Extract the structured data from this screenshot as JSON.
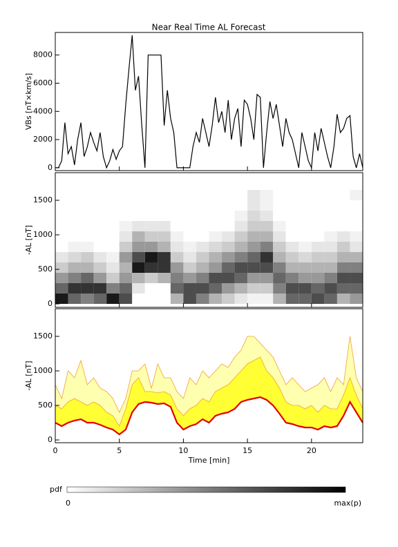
{
  "chart_data": [
    {
      "type": "line",
      "title": "Near Real Time AL Forecast",
      "ylabel": "VBs [nT×km/s]",
      "xlim": [
        0,
        24
      ],
      "xticks": [
        0,
        5,
        10,
        15,
        20
      ],
      "ylim": [
        -200,
        9600
      ],
      "yticks": [
        0,
        2000,
        4000,
        6000,
        8000
      ],
      "x": [
        0,
        0.25,
        0.5,
        0.75,
        1,
        1.25,
        1.5,
        1.75,
        2,
        2.25,
        2.5,
        2.75,
        3,
        3.25,
        3.5,
        3.75,
        4,
        4.25,
        4.5,
        4.75,
        5,
        5.25,
        5.5,
        5.75,
        6,
        6.25,
        6.5,
        6.75,
        7,
        7.25,
        7.5,
        7.75,
        8,
        8.25,
        8.5,
        8.75,
        9,
        9.25,
        9.5,
        9.75,
        10,
        10.25,
        10.5,
        10.75,
        11,
        11.25,
        11.5,
        11.75,
        12,
        12.25,
        12.5,
        12.75,
        13,
        13.25,
        13.5,
        13.75,
        14,
        14.25,
        14.5,
        14.75,
        15,
        15.25,
        15.5,
        15.75,
        16,
        16.25,
        16.5,
        16.75,
        17,
        17.25,
        17.5,
        17.75,
        18,
        18.25,
        18.5,
        18.75,
        19,
        19.25,
        19.5,
        19.75,
        20,
        20.25,
        20.5,
        20.75,
        21,
        21.25,
        21.5,
        21.75,
        22,
        22.25,
        22.5,
        22.75,
        23,
        23.25,
        23.5,
        23.75,
        24
      ],
      "series": [
        {
          "color": "#000000",
          "values": [
            0,
            0,
            500,
            3200,
            1000,
            1500,
            200,
            2000,
            3200,
            800,
            1500,
            2500,
            1800,
            1200,
            2500,
            800,
            0,
            500,
            1300,
            600,
            1200,
            1500,
            4500,
            7000,
            9400,
            5500,
            6500,
            3000,
            0,
            8000,
            8000,
            8000,
            8000,
            8000,
            3000,
            5500,
            3500,
            2500,
            0,
            0,
            0,
            0,
            0,
            1500,
            2500,
            1800,
            3500,
            2500,
            1500,
            3000,
            5000,
            3200,
            4000,
            2500,
            4800,
            2000,
            3500,
            4200,
            1500,
            4800,
            4500,
            3500,
            2000,
            5200,
            5000,
            0,
            2500,
            4700,
            3500,
            4500,
            3000,
            1500,
            3500,
            2500,
            2000,
            1000,
            0,
            2500,
            1500,
            500,
            0,
            2500,
            1200,
            2800,
            1800,
            800,
            0,
            1500,
            3800,
            2500,
            2800,
            3500,
            3700,
            800,
            0,
            1000,
            0
          ]
        }
      ]
    },
    {
      "type": "heatmap",
      "ylabel": "-AL [nT]",
      "xlim": [
        0,
        24
      ],
      "xticks": [
        0,
        5,
        10,
        15,
        20
      ],
      "ylim": [
        -50,
        1900
      ],
      "yticks": [
        0,
        500,
        1000,
        1500
      ],
      "xbins": [
        0,
        1,
        2,
        3,
        4,
        5,
        6,
        7,
        8,
        9,
        10,
        11,
        12,
        13,
        14,
        15,
        16,
        17,
        18,
        19,
        20,
        21,
        22,
        23,
        24
      ],
      "ybins": [
        0,
        150,
        300,
        450,
        600,
        750,
        900,
        1050,
        1200,
        1350,
        1500,
        1650,
        1800
      ],
      "z": [
        [
          0.9,
          0.6,
          0.4,
          0.2,
          0.1,
          0,
          0,
          0,
          0,
          0,
          0,
          0
        ],
        [
          0.6,
          0.8,
          0.5,
          0.3,
          0.15,
          0.05,
          0,
          0,
          0,
          0,
          0,
          0
        ],
        [
          0.5,
          0.8,
          0.6,
          0.3,
          0.2,
          0.05,
          0,
          0,
          0,
          0,
          0,
          0
        ],
        [
          0.6,
          0.8,
          0.4,
          0.2,
          0.1,
          0,
          0,
          0,
          0,
          0,
          0,
          0
        ],
        [
          0.9,
          0.5,
          0.2,
          0.1,
          0.05,
          0,
          0,
          0,
          0,
          0,
          0,
          0
        ],
        [
          0.7,
          0.6,
          0.4,
          0.3,
          0.4,
          0.2,
          0.1,
          0.05,
          0,
          0,
          0,
          0
        ],
        [
          0,
          0.1,
          0.3,
          0.9,
          0.7,
          0.4,
          0.3,
          0.1,
          0,
          0,
          0,
          0
        ],
        [
          0,
          0,
          0.2,
          0.8,
          0.9,
          0.4,
          0.2,
          0.1,
          0,
          0,
          0,
          0
        ],
        [
          0,
          0,
          0.3,
          0.8,
          0.8,
          0.3,
          0.2,
          0.1,
          0,
          0,
          0,
          0
        ],
        [
          0.3,
          0.6,
          0.5,
          0.4,
          0.2,
          0.1,
          0.05,
          0,
          0,
          0,
          0,
          0
        ],
        [
          0.7,
          0.7,
          0.4,
          0.2,
          0.1,
          0.05,
          0,
          0,
          0,
          0,
          0,
          0
        ],
        [
          0.5,
          0.7,
          0.5,
          0.3,
          0.2,
          0.1,
          0,
          0,
          0,
          0,
          0,
          0
        ],
        [
          0.3,
          0.6,
          0.7,
          0.4,
          0.3,
          0.15,
          0.05,
          0,
          0,
          0,
          0,
          0
        ],
        [
          0.2,
          0.4,
          0.7,
          0.6,
          0.4,
          0.2,
          0.1,
          0,
          0,
          0,
          0,
          0
        ],
        [
          0.1,
          0.3,
          0.6,
          0.7,
          0.5,
          0.3,
          0.2,
          0.1,
          0.05,
          0,
          0,
          0
        ],
        [
          0.05,
          0.2,
          0.4,
          0.7,
          0.6,
          0.4,
          0.3,
          0.2,
          0.15,
          0.1,
          0.1,
          0
        ],
        [
          0.05,
          0.2,
          0.4,
          0.7,
          0.8,
          0.5,
          0.3,
          0.2,
          0.1,
          0.05,
          0.05,
          0
        ],
        [
          0.3,
          0.5,
          0.6,
          0.5,
          0.3,
          0.2,
          0.1,
          0.05,
          0,
          0,
          0,
          0
        ],
        [
          0.6,
          0.7,
          0.5,
          0.3,
          0.2,
          0.1,
          0,
          0,
          0,
          0,
          0,
          0
        ],
        [
          0.6,
          0.7,
          0.4,
          0.3,
          0.15,
          0.05,
          0,
          0,
          0,
          0,
          0,
          0
        ],
        [
          0.7,
          0.6,
          0.4,
          0.3,
          0.2,
          0.1,
          0,
          0,
          0,
          0,
          0,
          0
        ],
        [
          0.6,
          0.7,
          0.5,
          0.3,
          0.2,
          0.1,
          0.05,
          0,
          0,
          0,
          0,
          0
        ],
        [
          0.3,
          0.6,
          0.7,
          0.5,
          0.3,
          0.2,
          0.1,
          0,
          0,
          0,
          0,
          0
        ],
        [
          0.4,
          0.6,
          0.7,
          0.5,
          0.3,
          0.1,
          0.05,
          0,
          0,
          0,
          0.05,
          0
        ]
      ]
    },
    {
      "type": "band",
      "ylabel": "-AL [nT]",
      "xlabel": "Time [min]",
      "xlim": [
        0,
        24
      ],
      "xticks": [
        0,
        5,
        10,
        15,
        20
      ],
      "ylim": [
        -40,
        1900
      ],
      "yticks": [
        0,
        500,
        1000,
        1500
      ],
      "x": [
        0,
        0.5,
        1,
        1.5,
        2,
        2.5,
        3,
        3.5,
        4,
        4.5,
        5,
        5.5,
        6,
        6.5,
        7,
        7.5,
        8,
        8.5,
        9,
        9.5,
        10,
        10.5,
        11,
        11.5,
        12,
        12.5,
        13,
        13.5,
        14,
        14.5,
        15,
        15.5,
        16,
        16.5,
        17,
        17.5,
        18,
        18.5,
        19,
        19.5,
        20,
        20.5,
        21,
        21.5,
        22,
        22.5,
        23,
        23.5,
        24
      ],
      "series": [
        {
          "color": "#e00000",
          "values": [
            250,
            200,
            250,
            280,
            300,
            250,
            250,
            220,
            180,
            150,
            80,
            150,
            400,
            520,
            550,
            540,
            520,
            530,
            480,
            250,
            150,
            200,
            230,
            300,
            250,
            350,
            380,
            400,
            450,
            550,
            580,
            600,
            620,
            580,
            500,
            380,
            250,
            230,
            200,
            180,
            180,
            150,
            200,
            180,
            200,
            350,
            550,
            400,
            250
          ]
        },
        {
          "color": "#f0a030",
          "fill": "#ffff33",
          "values": [
            500,
            450,
            550,
            600,
            550,
            500,
            550,
            500,
            400,
            350,
            200,
            450,
            800,
            900,
            700,
            700,
            680,
            700,
            650,
            450,
            350,
            450,
            500,
            600,
            550,
            700,
            750,
            800,
            900,
            1000,
            1100,
            1150,
            1200,
            1000,
            900,
            750,
            550,
            500,
            500,
            450,
            500,
            400,
            500,
            450,
            450,
            650,
            900,
            650,
            450
          ]
        },
        {
          "color": "#f0a030",
          "fill": "#ffffb0",
          "values": [
            800,
            600,
            1000,
            900,
            1150,
            800,
            900,
            750,
            700,
            600,
            400,
            600,
            1000,
            1000,
            1100,
            750,
            1100,
            900,
            900,
            700,
            600,
            900,
            800,
            1000,
            900,
            1000,
            1100,
            1050,
            1200,
            1300,
            1500,
            1500,
            1400,
            1300,
            1200,
            1000,
            800,
            900,
            800,
            700,
            750,
            800,
            900,
            700,
            900,
            800,
            1500,
            900,
            700
          ]
        }
      ]
    }
  ],
  "colorbar": {
    "label": "pdf",
    "min_label": "0",
    "max_label": "max(p)"
  }
}
